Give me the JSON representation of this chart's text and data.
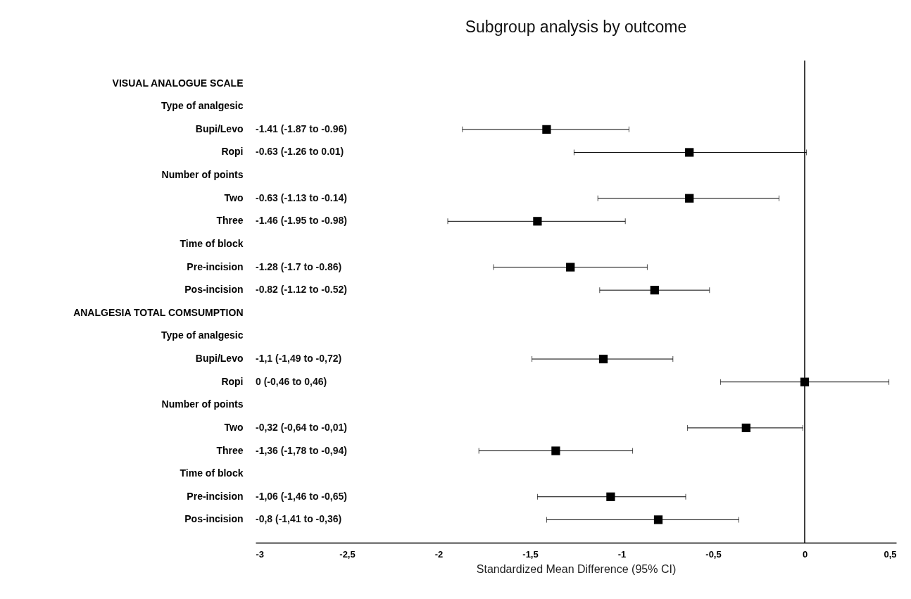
{
  "chart_data": {
    "type": "scatter",
    "orientation": "horizontal",
    "title": "Subgroup analysis by outcome",
    "xlabel": "Standardized Mean Difference (95% CI)",
    "categories": [
      "VISUAL ANALOGUE SCALE",
      "Type of analgesic",
      "Bupi/Levo",
      "Ropi",
      "Number of points",
      "Two",
      "Three",
      "Time of block",
      "Pre-incision",
      "Pos-incision",
      "ANALGESIA TOTAL COMSUMPTION",
      "Type of analgesic",
      "Bupi/Levo",
      "Ropi",
      "Number of points",
      "Two",
      "Three",
      "Time of block",
      "Pre-incision",
      "Pos-incision"
    ],
    "values": [
      null,
      null,
      -1.41,
      -0.63,
      null,
      -0.63,
      -1.46,
      null,
      -1.28,
      -0.82,
      null,
      null,
      -1.1,
      0,
      null,
      -0.32,
      -1.36,
      null,
      -1.06,
      -0.8
    ],
    "errors": [
      null,
      null,
      [
        -1.87,
        -0.96
      ],
      [
        -1.26,
        0.01
      ],
      null,
      [
        -1.13,
        -0.14
      ],
      [
        -1.95,
        -0.98
      ],
      null,
      [
        -1.7,
        -0.86
      ],
      [
        -1.12,
        -0.52
      ],
      null,
      null,
      [
        -1.49,
        -0.72
      ],
      [
        -0.46,
        0.46
      ],
      null,
      [
        -0.64,
        -0.01
      ],
      [
        -1.78,
        -0.94
      ],
      null,
      [
        -1.46,
        -0.65
      ],
      [
        -1.41,
        -0.36
      ]
    ],
    "annotations": [
      "-1.41 (-1.87 to -0.96)",
      "-0.63 (-1.26 to 0.01)",
      "-0.63 (-1.13 to -0.14)",
      "-1.46 (-1.95 to -0.98)",
      "-1.28 (-1.7 to -0.86)",
      "-0.82 (-1.12 to -0.52)",
      "-1,1 (-1,49 to -0,72)",
      "0 (-0,46 to 0,46)",
      "-0,32 (-0,64 to -0,01)",
      "-1,36 (-1,78 to -0,94)",
      "-1,06 (-1,46 to -0,65)",
      "-0,8 (-1,41 to -0,36)"
    ],
    "color": "#000000",
    "marker": "square",
    "xlim": [
      -3,
      0.5
    ],
    "xticks": [
      -3,
      {
        "value": -2.5,
        "label": "-2,5"
      },
      -2,
      {
        "value": -1.5,
        "label": "-1,5"
      },
      -1,
      {
        "value": -0.5,
        "label": "-0,5"
      },
      0,
      {
        "value": 0.5,
        "label": "0,5"
      }
    ],
    "ref_lines": [
      {
        "axis": "x",
        "value": 0,
        "color": "#000000"
      }
    ],
    "grid": false
  }
}
